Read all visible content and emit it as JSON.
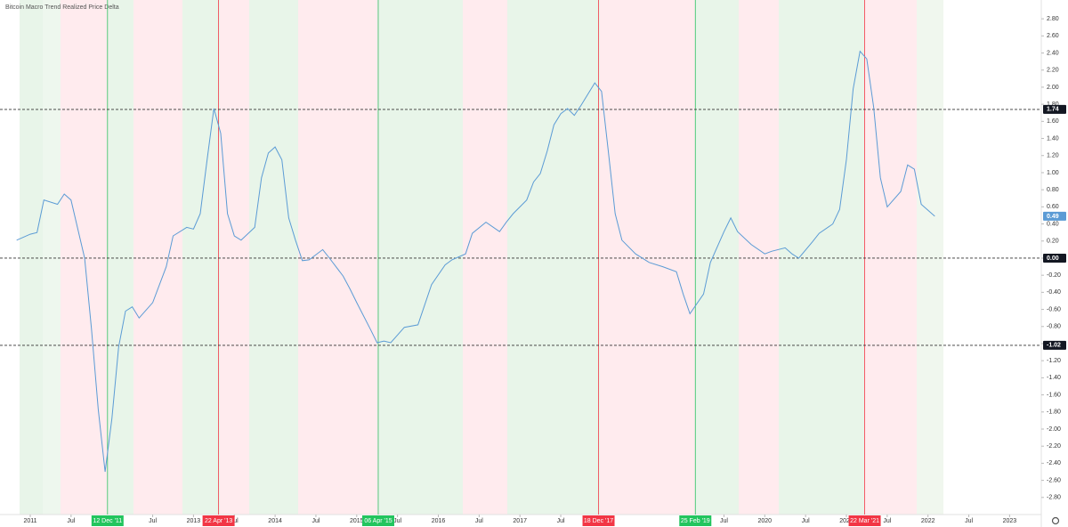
{
  "chart_data": {
    "type": "line",
    "title": "Bitcoin Macro Trend Realized Price Delta",
    "x": [
      "2010-11",
      "2011-01",
      "2011-02",
      "2011-03",
      "2011-05",
      "2011-06",
      "2011-07",
      "2011-09",
      "2011-10",
      "2011-11",
      "2011-12",
      "2012-01",
      "2012-02",
      "2012-03",
      "2012-04",
      "2012-05",
      "2012-07",
      "2012-09",
      "2012-10",
      "2012-12",
      "2013-01",
      "2013-02",
      "2013-03",
      "2013-04",
      "2013-05",
      "2013-06",
      "2013-07",
      "2013-08",
      "2013-10",
      "2013-11",
      "2013-12",
      "2014-01",
      "2014-02",
      "2014-03",
      "2014-04",
      "2014-05",
      "2014-06",
      "2014-08",
      "2014-09",
      "2014-11",
      "2014-12",
      "2015-01",
      "2015-03",
      "2015-04",
      "2015-05",
      "2015-06",
      "2015-08",
      "2015-10",
      "2015-12",
      "2016-02",
      "2016-03",
      "2016-05",
      "2016-06",
      "2016-08",
      "2016-10",
      "2016-11",
      "2016-12",
      "2017-02",
      "2017-03",
      "2017-04",
      "2017-05",
      "2017-06",
      "2017-07",
      "2017-08",
      "2017-09",
      "2017-10",
      "2017-12",
      "2018-01",
      "2018-02",
      "2018-03",
      "2018-04",
      "2018-06",
      "2018-08",
      "2018-10",
      "2018-12",
      "2019-01",
      "2019-02",
      "2019-04",
      "2019-05",
      "2019-07",
      "2019-08",
      "2019-09",
      "2019-11",
      "2020-01",
      "2020-02",
      "2020-04",
      "2020-05",
      "2020-06",
      "2020-08",
      "2020-09",
      "2020-11",
      "2020-12",
      "2021-01",
      "2021-02",
      "2021-03",
      "2021-04",
      "2021-05",
      "2021-06",
      "2021-07",
      "2021-09",
      "2021-10",
      "2021-11",
      "2021-12",
      "2022-02"
    ],
    "series": [
      {
        "color": "#5b9bd5",
        "values": [
          0.21,
          0.28,
          0.3,
          0.68,
          0.63,
          0.75,
          0.68,
          0.0,
          -0.83,
          -1.77,
          -2.5,
          -1.88,
          -1.04,
          -0.62,
          -0.57,
          -0.7,
          -0.52,
          -0.1,
          0.26,
          0.36,
          0.34,
          0.52,
          1.15,
          1.75,
          1.46,
          0.52,
          0.26,
          0.21,
          0.36,
          0.94,
          1.23,
          1.3,
          1.15,
          0.47,
          0.21,
          -0.03,
          -0.02,
          0.1,
          0.0,
          -0.21,
          -0.36,
          -0.52,
          -0.83,
          -0.99,
          -0.97,
          -0.99,
          -0.81,
          -0.78,
          -0.31,
          -0.08,
          -0.02,
          0.05,
          0.29,
          0.42,
          0.31,
          0.42,
          0.52,
          0.68,
          0.89,
          0.99,
          1.25,
          1.56,
          1.69,
          1.75,
          1.67,
          1.79,
          2.05,
          1.95,
          1.25,
          0.52,
          0.21,
          0.05,
          -0.05,
          -0.1,
          -0.16,
          -0.42,
          -0.65,
          -0.42,
          -0.05,
          0.31,
          0.47,
          0.31,
          0.16,
          0.05,
          0.08,
          0.12,
          0.05,
          0.0,
          0.19,
          0.29,
          0.4,
          0.57,
          1.15,
          1.98,
          2.42,
          2.33,
          1.77,
          0.94,
          0.6,
          0.78,
          1.09,
          1.04,
          0.63,
          0.49
        ]
      }
    ],
    "ylim": [
      -3.0,
      3.02
    ],
    "yticks": [
      {
        "value": 2.8,
        "label": "2.80"
      },
      {
        "value": 2.6,
        "label": "2.60"
      },
      {
        "value": 2.4,
        "label": "2.40"
      },
      {
        "value": 2.2,
        "label": "2.20"
      },
      {
        "value": 2.0,
        "label": "2.00"
      },
      {
        "value": 1.8,
        "label": "1.80"
      },
      {
        "value": 1.6,
        "label": "1.60"
      },
      {
        "value": 1.4,
        "label": "1.40"
      },
      {
        "value": 1.2,
        "label": "1.20"
      },
      {
        "value": 1.0,
        "label": "1.00"
      },
      {
        "value": 0.8,
        "label": "0.80"
      },
      {
        "value": 0.6,
        "label": "0.60"
      },
      {
        "value": 0.4,
        "label": "0.40"
      },
      {
        "value": 0.2,
        "label": "0.20"
      },
      {
        "value": 0,
        "label": "0.00"
      },
      {
        "value": -0.2,
        "label": "-0.20"
      },
      {
        "value": -0.4,
        "label": "-0.40"
      },
      {
        "value": -0.6,
        "label": "-0.60"
      },
      {
        "value": -0.8,
        "label": "-0.80"
      },
      {
        "value": -1.0,
        "label": "-1.00"
      },
      {
        "value": -1.2,
        "label": "-1.20"
      },
      {
        "value": -1.4,
        "label": "-1.40"
      },
      {
        "value": -1.6,
        "label": "-1.60"
      },
      {
        "value": -1.8,
        "label": "-1.80"
      },
      {
        "value": -2.0,
        "label": "-2.00"
      },
      {
        "value": -2.2,
        "label": "-2.20"
      },
      {
        "value": -2.4,
        "label": "-2.40"
      },
      {
        "value": -2.6,
        "label": "-2.60"
      },
      {
        "value": -2.8,
        "label": "-2.80"
      }
    ],
    "xticks": [
      {
        "value": "2011-01",
        "label": "2011"
      },
      {
        "value": "2011-07",
        "label": "Jul"
      },
      {
        "value": "2012-07",
        "label": "Jul"
      },
      {
        "value": "2013-01",
        "label": "2013"
      },
      {
        "value": "2013-07",
        "label": "Jul"
      },
      {
        "value": "2014-01",
        "label": "2014"
      },
      {
        "value": "2014-07",
        "label": "Jul"
      },
      {
        "value": "2015-01",
        "label": "2015"
      },
      {
        "value": "2015-07",
        "label": "Jul"
      },
      {
        "value": "2016-01",
        "label": "2016"
      },
      {
        "value": "2016-07",
        "label": "Jul"
      },
      {
        "value": "2017-01",
        "label": "2017"
      },
      {
        "value": "2017-07",
        "label": "Jul"
      },
      {
        "value": "2019-07",
        "label": "Jul"
      },
      {
        "value": "2020-01",
        "label": "2020"
      },
      {
        "value": "2020-07",
        "label": "Jul"
      },
      {
        "value": "2021-01",
        "label": "2021"
      },
      {
        "value": "2021-07",
        "label": "Jul"
      },
      {
        "value": "2022-01",
        "label": "2022"
      },
      {
        "value": "2022-07",
        "label": "Jul"
      },
      {
        "value": "2023-01",
        "label": "2023"
      }
    ],
    "events": [
      {
        "date": "2011-12-12",
        "label": "12 Dec '11",
        "color": "#22c55e"
      },
      {
        "date": "2013-04-22",
        "label": "22 Apr '13",
        "color": "#f23645"
      },
      {
        "date": "2015-04-06",
        "label": "06 Apr '15",
        "color": "#22c55e"
      },
      {
        "date": "2017-12-18",
        "label": "18 Dec '17",
        "color": "#f23645"
      },
      {
        "date": "2019-02-25",
        "label": "25 Feb '19",
        "color": "#22c55e"
      },
      {
        "date": "2021-03-22",
        "label": "22 Mar '21",
        "color": "#f23645"
      }
    ],
    "hlines": [
      {
        "value": 1.74,
        "label": "1.74"
      },
      {
        "value": 0,
        "label": "0.00"
      },
      {
        "value": -1.02,
        "label": "-1.02"
      }
    ],
    "last_value": {
      "value": 0.49,
      "label": "0.49"
    }
  }
}
